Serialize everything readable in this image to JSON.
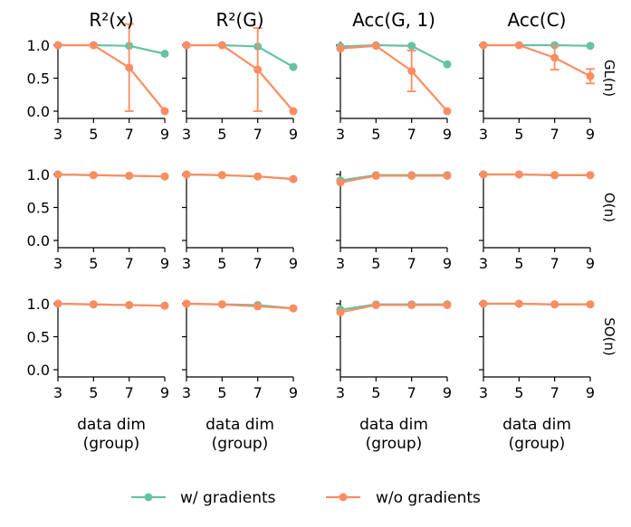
{
  "colors": {
    "with_gradients": "#66c2a5",
    "without_gradients": "#fc8d62",
    "axis": "#000000"
  },
  "legend": {
    "with": "w/ gradients",
    "without": "w/o gradients",
    "placement": "bottom-center"
  },
  "x_label_line1": "data dim",
  "x_label_line2": "(group)",
  "chart_data": {
    "type": "line",
    "layout": "facet-grid 3x4",
    "x": [
      3,
      5,
      7,
      9
    ],
    "x_ticks": [
      "3",
      "5",
      "7",
      "9"
    ],
    "ylim": [
      0,
      1.05
    ],
    "y_ticks": [
      "0.0",
      "0.5",
      "1.0"
    ],
    "column_titles": [
      "R²(x)",
      "R²(G)",
      "Acc(G, 1)",
      "Acc(C)"
    ],
    "row_labels": [
      "GL(n)",
      "O(n)",
      "SO(n)"
    ],
    "grid": false,
    "panels": [
      [
        {
          "series": [
            {
              "name": "w/ gradients",
              "values": [
                1.0,
                1.0,
                0.99,
                0.87
              ]
            },
            {
              "name": "w/o gradients",
              "values": [
                1.0,
                1.0,
                0.66,
                0.0
              ],
              "error": [
                0,
                0,
                0.66,
                0
              ]
            }
          ]
        },
        {
          "series": [
            {
              "name": "w/ gradients",
              "values": [
                1.0,
                1.0,
                0.98,
                0.67
              ]
            },
            {
              "name": "w/o gradients",
              "values": [
                1.0,
                1.0,
                0.63,
                0.0
              ],
              "error": [
                0,
                0,
                0.63,
                0
              ]
            }
          ]
        },
        {
          "series": [
            {
              "name": "w/ gradients",
              "values": [
                0.98,
                1.0,
                0.99,
                0.71
              ]
            },
            {
              "name": "w/o gradients",
              "values": [
                0.95,
                0.99,
                0.61,
                0.0
              ],
              "error": [
                0,
                0,
                0.31,
                0
              ]
            }
          ]
        },
        {
          "series": [
            {
              "name": "w/ gradients",
              "values": [
                1.0,
                1.0,
                1.0,
                0.99
              ]
            },
            {
              "name": "w/o gradients",
              "values": [
                1.0,
                1.0,
                0.81,
                0.53
              ],
              "error": [
                0,
                0,
                0.18,
                0.11
              ]
            }
          ]
        }
      ],
      [
        {
          "series": [
            {
              "name": "w/ gradients",
              "values": [
                1.0,
                0.99,
                0.98,
                0.97
              ]
            },
            {
              "name": "w/o gradients",
              "values": [
                1.0,
                0.99,
                0.98,
                0.97
              ]
            }
          ]
        },
        {
          "series": [
            {
              "name": "w/ gradients",
              "values": [
                1.0,
                0.99,
                0.97,
                0.93
              ]
            },
            {
              "name": "w/o gradients",
              "values": [
                1.0,
                0.99,
                0.97,
                0.93
              ]
            }
          ]
        },
        {
          "series": [
            {
              "name": "w/ gradients",
              "values": [
                0.91,
                0.99,
                0.99,
                0.99
              ]
            },
            {
              "name": "w/o gradients",
              "values": [
                0.88,
                0.98,
                0.98,
                0.98
              ]
            }
          ]
        },
        {
          "series": [
            {
              "name": "w/ gradients",
              "values": [
                1.0,
                1.0,
                0.99,
                0.99
              ]
            },
            {
              "name": "w/o gradients",
              "values": [
                1.0,
                1.0,
                0.99,
                0.99
              ]
            }
          ]
        }
      ],
      [
        {
          "series": [
            {
              "name": "w/ gradients",
              "values": [
                1.0,
                0.99,
                0.98,
                0.97
              ]
            },
            {
              "name": "w/o gradients",
              "values": [
                1.0,
                0.99,
                0.98,
                0.97
              ]
            }
          ]
        },
        {
          "series": [
            {
              "name": "w/ gradients",
              "values": [
                1.0,
                0.99,
                0.98,
                0.93
              ]
            },
            {
              "name": "w/o gradients",
              "values": [
                1.0,
                0.99,
                0.96,
                0.93
              ]
            }
          ]
        },
        {
          "series": [
            {
              "name": "w/ gradients",
              "values": [
                0.91,
                0.99,
                0.99,
                0.99
              ]
            },
            {
              "name": "w/o gradients",
              "values": [
                0.87,
                0.98,
                0.98,
                0.98
              ]
            }
          ]
        },
        {
          "series": [
            {
              "name": "w/ gradients",
              "values": [
                1.0,
                1.0,
                0.99,
                0.99
              ]
            },
            {
              "name": "w/o gradients",
              "values": [
                1.0,
                1.0,
                0.99,
                0.99
              ]
            }
          ]
        }
      ]
    ]
  }
}
